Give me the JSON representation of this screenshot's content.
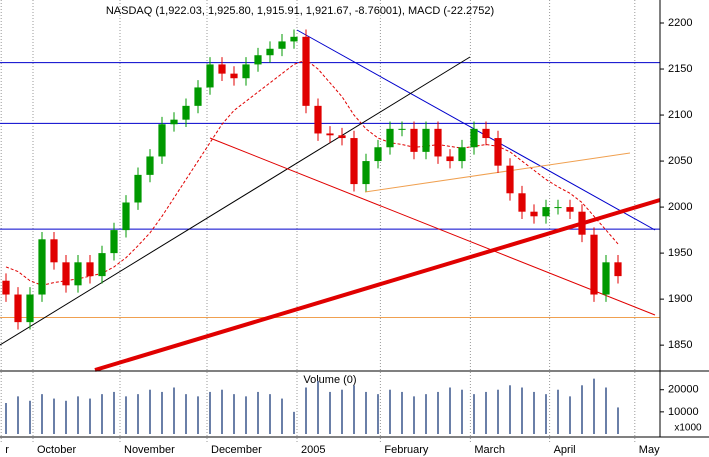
{
  "chart_data": [
    {
      "type": "candlestick",
      "title": "NASDAQ (1,922.03, 1,925.80, 1,915.91, 1,921.67, -8.76001), MACD (-22.2752)",
      "open": [
        1920,
        1905,
        1875,
        1905,
        1965,
        1940,
        1915,
        1940,
        1925,
        1950,
        1975,
        2005,
        2035,
        2055,
        2090,
        2095,
        2110,
        2130,
        2155,
        2145,
        2140,
        2155,
        2165,
        2172,
        2180,
        2185,
        2110,
        2080,
        2078,
        2075,
        2025,
        2050,
        2065,
        2085,
        2085,
        2060,
        2085,
        2055,
        2050,
        2065,
        2085,
        2075,
        2045,
        2015,
        1995,
        1990,
        2000,
        2000,
        1995,
        1970,
        1905,
        1940
      ],
      "high": [
        1928,
        1913,
        1913,
        1973,
        1973,
        1948,
        1948,
        1948,
        1958,
        1983,
        2013,
        2043,
        2063,
        2098,
        2103,
        2118,
        2138,
        2163,
        2163,
        2153,
        2163,
        2173,
        2180,
        2188,
        2193,
        2193,
        2118,
        2088,
        2086,
        2083,
        2058,
        2073,
        2093,
        2093,
        2093,
        2093,
        2093,
        2063,
        2073,
        2093,
        2093,
        2083,
        2053,
        2023,
        2003,
        2008,
        2008,
        2008,
        2003,
        1978,
        1948,
        1948
      ],
      "low": [
        1897,
        1867,
        1867,
        1897,
        1932,
        1907,
        1907,
        1917,
        1917,
        1942,
        1967,
        1997,
        2027,
        2047,
        2082,
        2087,
        2102,
        2122,
        2137,
        2132,
        2132,
        2147,
        2157,
        2164,
        2172,
        2102,
        2072,
        2070,
        2067,
        2017,
        2017,
        2042,
        2057,
        2077,
        2052,
        2052,
        2047,
        2042,
        2042,
        2057,
        2067,
        2037,
        2007,
        1987,
        1982,
        1982,
        1992,
        1987,
        1962,
        1897,
        1897,
        1917
      ],
      "close": [
        1905,
        1875,
        1905,
        1965,
        1940,
        1915,
        1940,
        1925,
        1950,
        1975,
        2005,
        2035,
        2055,
        2090,
        2095,
        2110,
        2130,
        2155,
        2145,
        2140,
        2155,
        2165,
        2172,
        2180,
        2185,
        2110,
        2080,
        2078,
        2075,
        2025,
        2050,
        2065,
        2085,
        2085,
        2060,
        2085,
        2055,
        2050,
        2065,
        2085,
        2075,
        2045,
        2015,
        1995,
        1990,
        2000,
        2000,
        1995,
        1970,
        1905,
        1940,
        1925
      ],
      "up_color": "#009900",
      "down_color": "#e00000",
      "ma": {
        "color": "#e00000",
        "values": [
          1935,
          1930,
          1920,
          1915,
          1918,
          1920,
          1922,
          1925,
          1928,
          1935,
          1945,
          1958,
          1972,
          1990,
          2010,
          2030,
          2050,
          2070,
          2090,
          2105,
          2115,
          2125,
          2135,
          2145,
          2155,
          2160,
          2150,
          2135,
          2120,
          2100,
          2085,
          2075,
          2070,
          2068,
          2065,
          2066,
          2068,
          2066,
          2064,
          2066,
          2068,
          2066,
          2060,
          2050,
          2040,
          2030,
          2022,
          2015,
          2005,
          1990,
          1975,
          1960
        ]
      },
      "hlines": [
        {
          "value": 2157,
          "color": "#0000cc"
        },
        {
          "value": 2091,
          "color": "#0000cc"
        },
        {
          "value": 1976,
          "color": "#0000cc"
        },
        {
          "value": 1880,
          "color": "#f0a050"
        }
      ],
      "ylim": [
        1823,
        2225
      ],
      "yticks": [
        1850,
        1900,
        1950,
        2000,
        2050,
        2100,
        2150,
        2200
      ],
      "xlim": [
        -0.5,
        54.5
      ],
      "xticks": [
        {
          "value": -0.4,
          "label": "r"
        },
        {
          "value": 2.25,
          "label": "October"
        },
        {
          "value": 9.5,
          "label": "November"
        },
        {
          "value": 16.75,
          "label": "December"
        },
        {
          "value": 24.25,
          "label": "2005"
        },
        {
          "value": 31.2,
          "label": "February"
        },
        {
          "value": 38.7,
          "label": "March"
        },
        {
          "value": 45.3,
          "label": "April"
        },
        {
          "value": 52.4,
          "label": "May"
        }
      ]
    },
    {
      "type": "bar",
      "title": "Volume (0)",
      "y_label": "x1000",
      "color": "#6a7fa8",
      "values": [
        14000,
        17000,
        15000,
        18000,
        16000,
        15000,
        17000,
        16000,
        18000,
        19000,
        17000,
        18000,
        20000,
        19000,
        21000,
        18000,
        17000,
        19000,
        20000,
        18000,
        17000,
        19000,
        18000,
        16000,
        10000,
        21000,
        24000,
        19000,
        20000,
        22000,
        19000,
        18000,
        20000,
        19000,
        17000,
        18000,
        19000,
        21000,
        20000,
        18000,
        19000,
        20000,
        22000,
        21000,
        19000,
        18000,
        20000,
        17000,
        22000,
        25000,
        21000,
        12000
      ],
      "ylim": [
        0,
        28000
      ],
      "yticks": [
        10000,
        20000
      ]
    }
  ]
}
